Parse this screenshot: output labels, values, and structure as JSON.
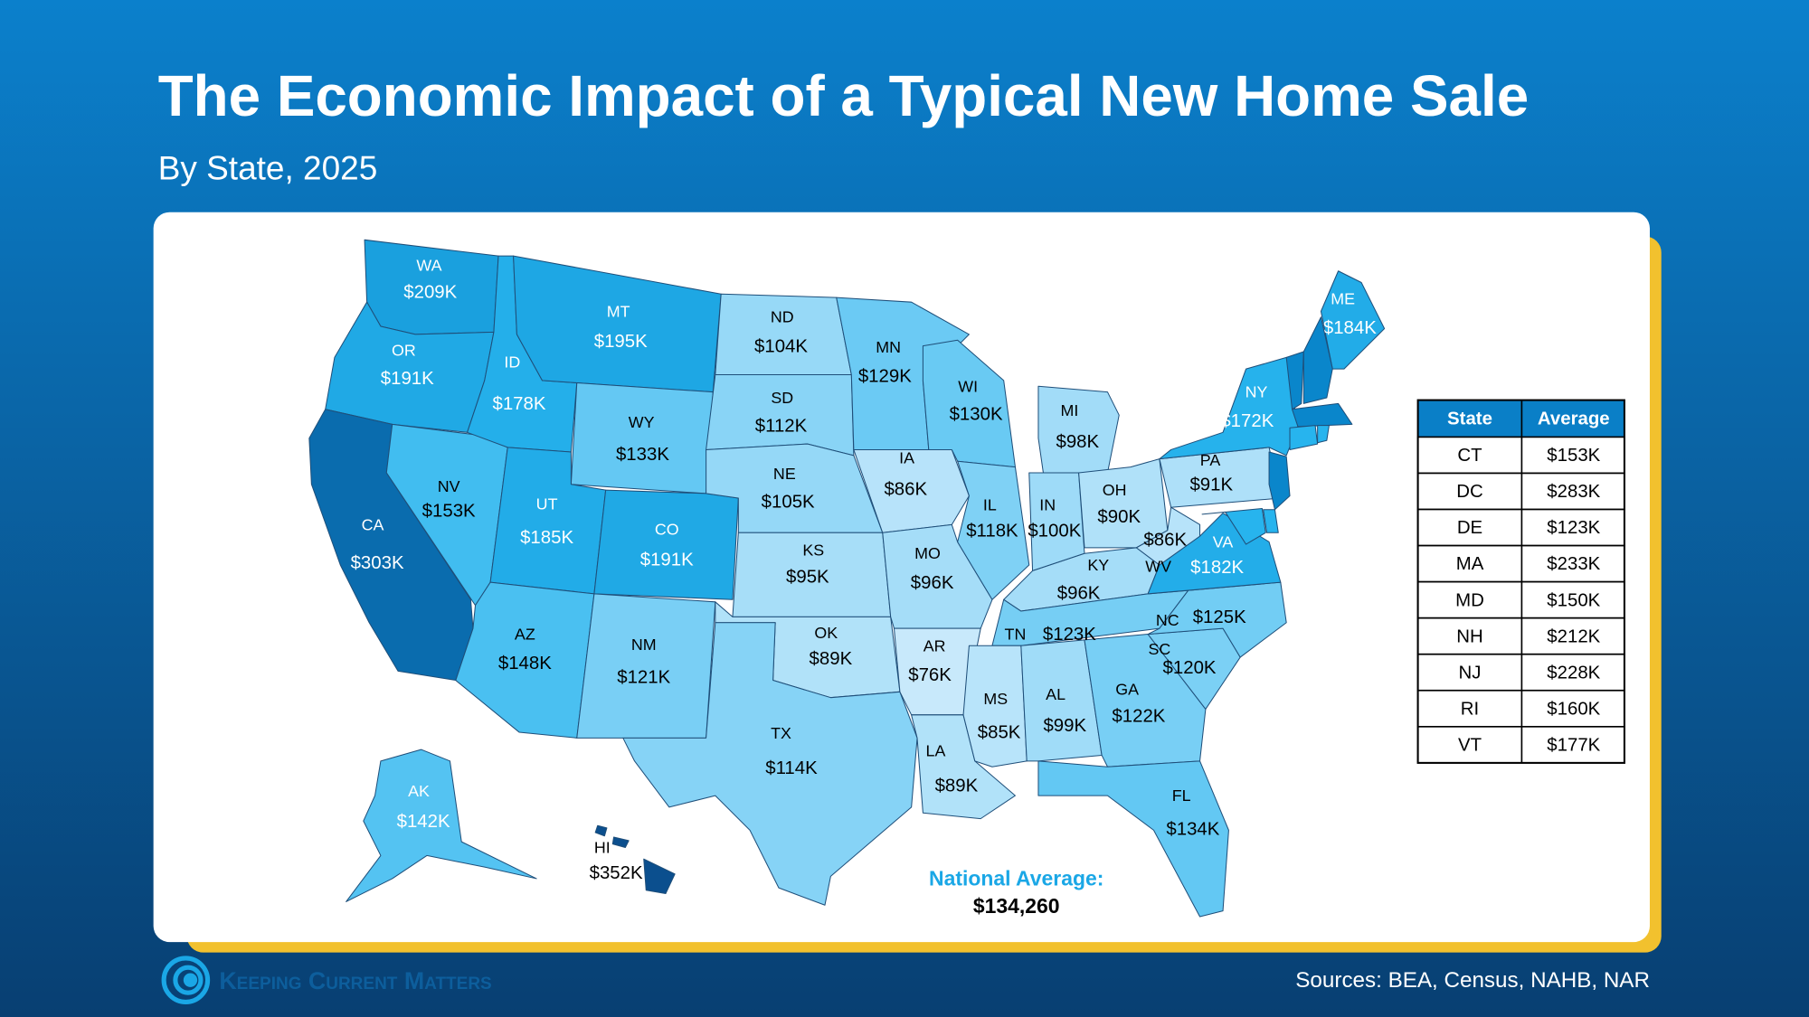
{
  "title": "The Economic Impact of a Typical New Home Sale",
  "subtitle": "By State, 2025",
  "source": "Sources: BEA, Census, NAHB, NAR",
  "logo": "Keeping Current Matters",
  "chart_data": {
    "type": "choropleth",
    "categories": [
      "WA",
      "OR",
      "CA",
      "NV",
      "ID",
      "MT",
      "WY",
      "UT",
      "CO",
      "AZ",
      "NM",
      "ND",
      "SD",
      "NE",
      "KS",
      "OK",
      "TX",
      "MN",
      "IA",
      "MO",
      "AR",
      "LA",
      "WI",
      "IL",
      "MI",
      "IN",
      "OH",
      "KY",
      "TN",
      "MS",
      "AL",
      "GA",
      "FL",
      "SC",
      "NC",
      "VA",
      "WV",
      "PA",
      "NY",
      "ME",
      "AK",
      "HI"
    ],
    "values": [
      209000,
      191000,
      303000,
      153000,
      178000,
      195000,
      133000,
      185000,
      191000,
      148000,
      121000,
      104000,
      112000,
      105000,
      95000,
      89000,
      114000,
      129000,
      86000,
      96000,
      76000,
      89000,
      130000,
      118000,
      98000,
      100000,
      90000,
      96000,
      123000,
      85000,
      99000,
      122000,
      134000,
      120000,
      125000,
      182000,
      86000,
      91000,
      172000,
      184000,
      142000,
      352000
    ],
    "value_labels": [
      "$209K",
      "$191K",
      "$303K",
      "$153K",
      "$178K",
      "$195K",
      "$133K",
      "$185K",
      "$191K",
      "$148K",
      "$121K",
      "$104K",
      "$112K",
      "$105K",
      "$95K",
      "$89K",
      "$114K",
      "$129K",
      "$86K",
      "$96K",
      "$76K",
      "$89K",
      "$130K",
      "$118K",
      "$98K",
      "$100K",
      "$90K",
      "$96K",
      "$123K",
      "$85K",
      "$99K",
      "$122K",
      "$134K",
      "$120K",
      "$125K",
      "$182K",
      "$86K",
      "$91K",
      "$172K",
      "$184K",
      "$142K",
      "$352K"
    ],
    "color_scale": [
      "#c8e9fb",
      "#27b4ee",
      "#0a86cb",
      "#0b4f8e"
    ],
    "national_average": {
      "label": "National Average:",
      "value_label": "$134,260"
    }
  },
  "table": {
    "columns": [
      "State",
      "Average"
    ],
    "rows": [
      [
        "CT",
        "$153K"
      ],
      [
        "DC",
        "$283K"
      ],
      [
        "DE",
        "$123K"
      ],
      [
        "MA",
        "$233K"
      ],
      [
        "MD",
        "$150K"
      ],
      [
        "NH",
        "$212K"
      ],
      [
        "NJ",
        "$228K"
      ],
      [
        "RI",
        "$160K"
      ],
      [
        "VT",
        "$177K"
      ]
    ]
  }
}
